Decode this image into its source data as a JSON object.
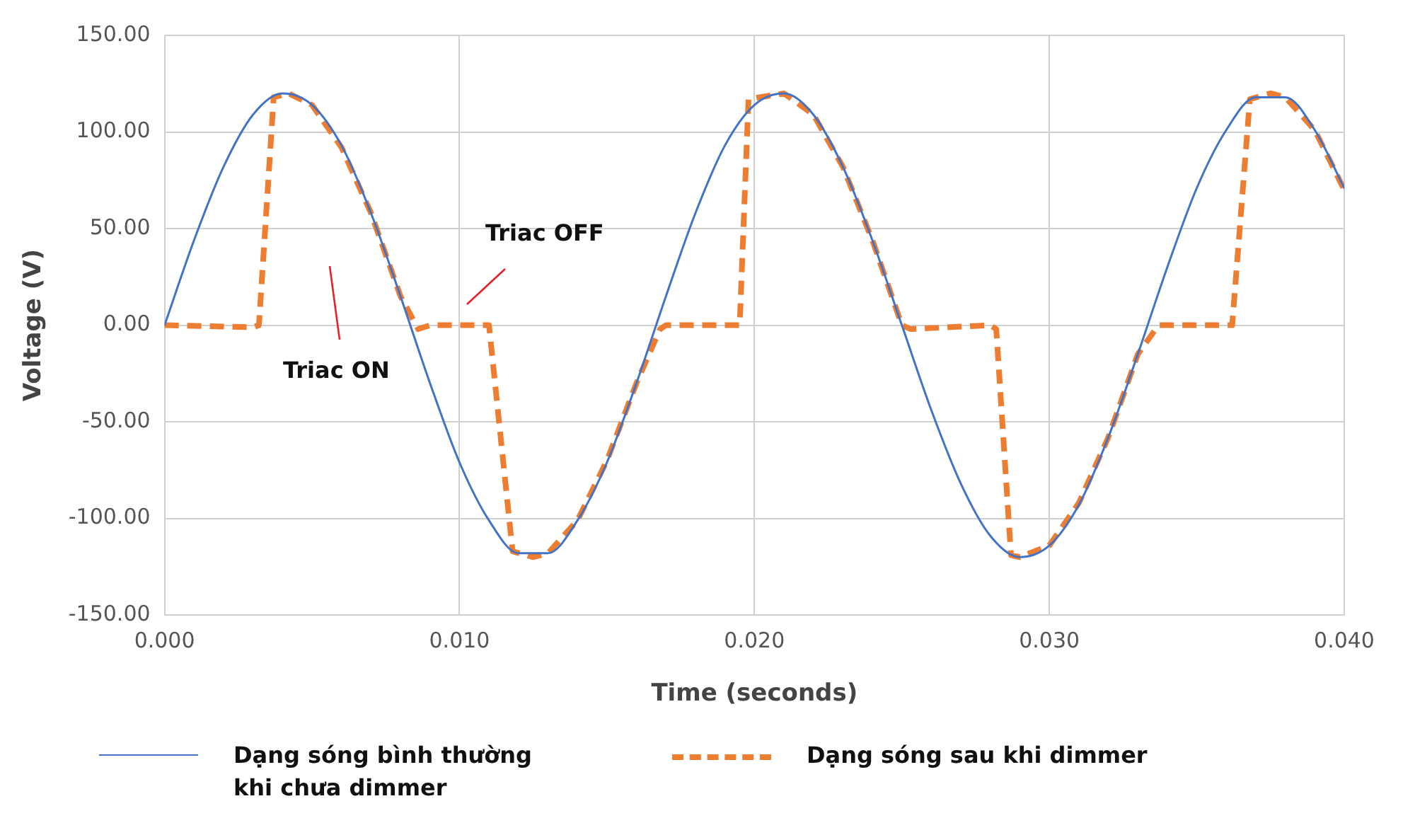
{
  "chart_data": {
    "type": "line",
    "xlabel": "Time (seconds)",
    "ylabel": "Voltage (V)",
    "xlim": [
      0,
      0.04
    ],
    "xticks": [
      {
        "value": 0,
        "label": "0.000"
      },
      {
        "value": 0.01,
        "label": "0.010"
      },
      {
        "value": 0.02,
        "label": "0.020"
      },
      {
        "value": 0.03,
        "label": "0.030"
      },
      {
        "value": 0.04,
        "label": "0.040"
      }
    ],
    "ylim": [
      -150,
      150
    ],
    "yticks": [
      {
        "value": -150,
        "label": "-150.00"
      },
      {
        "value": -100,
        "label": "-100.00"
      },
      {
        "value": -50,
        "label": "-50.00"
      },
      {
        "value": 0,
        "label": "0.00"
      },
      {
        "value": 50,
        "label": "50.00"
      },
      {
        "value": 100,
        "label": "100.00"
      },
      {
        "value": 150,
        "label": "150.00"
      }
    ],
    "grid": true,
    "legend": "bottom",
    "series": [
      {
        "name": "Dạng sóng bình thường khi chưa dimmer",
        "color": "#4472c4",
        "line_style": "solid",
        "x": [
          0,
          0.001,
          0.002,
          0.003,
          0.004,
          0.005,
          0.006,
          0.007,
          0.008,
          0.009,
          0.01,
          0.011,
          0.012,
          0.013,
          0.014,
          0.015,
          0.016,
          0.017,
          0.018,
          0.019,
          0.02,
          0.021,
          0.022,
          0.023,
          0.024,
          0.025,
          0.026,
          0.027,
          0.028,
          0.029,
          0.03,
          0.031,
          0.032,
          0.033,
          0.034,
          0.035,
          0.036,
          0.037,
          0.038,
          0.039,
          0.04
        ],
        "values": [
          0,
          44,
          82,
          109,
          120,
          114,
          93,
          58,
          15,
          -30,
          -71,
          -101,
          -118,
          -118,
          -101,
          -71,
          -30,
          15,
          58,
          93,
          114,
          120,
          109,
          82,
          44,
          0,
          -44,
          -82,
          -109,
          -120,
          -114,
          -93,
          -58,
          -15,
          30,
          71,
          101,
          118,
          118,
          101,
          71
        ]
      },
      {
        "name": "Dạng sóng sau khi dimmer",
        "color": "#ed7d31",
        "line_style": "dashed",
        "x": [
          0,
          0.003,
          0.0032,
          0.0037,
          0.0042,
          0.005,
          0.006,
          0.007,
          0.008,
          0.0086,
          0.009,
          0.011,
          0.0118,
          0.0125,
          0.013,
          0.014,
          0.015,
          0.016,
          0.0168,
          0.017,
          0.0195,
          0.0198,
          0.021,
          0.022,
          0.023,
          0.024,
          0.025,
          0.0253,
          0.028,
          0.0282,
          0.0287,
          0.029,
          0.03,
          0.031,
          0.032,
          0.033,
          0.0337,
          0.036,
          0.0362,
          0.0368,
          0.0375,
          0.038,
          0.039,
          0.04
        ],
        "values": [
          0,
          -1,
          0,
          118,
          120,
          114,
          92,
          58,
          15,
          -2,
          0,
          0,
          -117,
          -120,
          -118,
          -101,
          -70,
          -30,
          -2,
          0,
          0,
          117,
          120,
          109,
          82,
          44,
          0,
          -2,
          0,
          -2,
          -119,
          -120,
          -114,
          -92,
          -58,
          -15,
          0,
          0,
          0,
          117,
          120,
          118,
          101,
          70
        ]
      }
    ],
    "annotations": [
      "Triac ON",
      "Triac OFF"
    ]
  }
}
